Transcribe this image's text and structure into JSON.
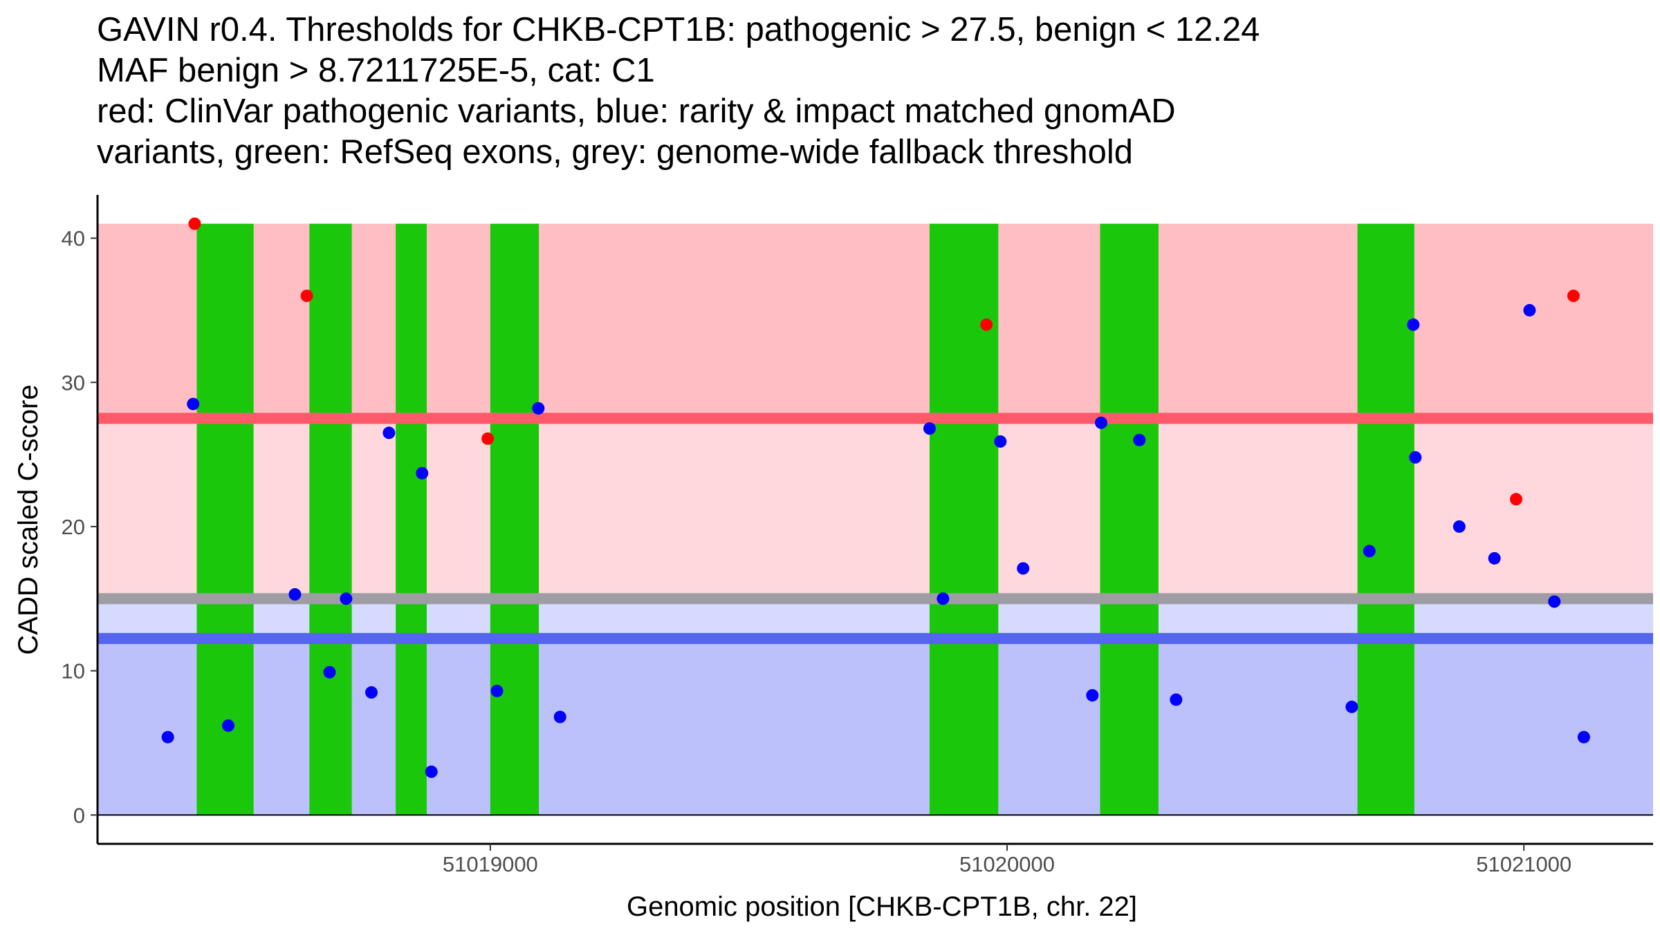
{
  "chart_data": {
    "type": "scatter",
    "title_lines": [
      "GAVIN r0.4. Thresholds for CHKB-CPT1B: pathogenic > 27.5, benign < 12.24",
      "MAF benign > 8.7211725E-5, cat: C1",
      "red: ClinVar pathogenic variants, blue: rarity & impact matched gnomAD",
      "variants, green: RefSeq exons, grey: genome-wide fallback threshold"
    ],
    "xlabel": "Genomic position [CHKB-CPT1B, chr. 22]",
    "ylabel": "CADD scaled C-score",
    "xlim": [
      51018240,
      51021250
    ],
    "ylim": [
      -2,
      43
    ],
    "x_ticks": [
      51019000,
      51020000,
      51021000
    ],
    "x_tick_labels": [
      "51019000",
      "51020000",
      "51021000"
    ],
    "y_ticks": [
      0,
      10,
      20,
      30,
      40
    ],
    "y_tick_labels": [
      "0",
      "10",
      "20",
      "30",
      "40"
    ],
    "thresholds": {
      "pathogenic": 27.5,
      "benign": 12.24,
      "genome_wide_fallback": 15
    },
    "background_bands": [
      {
        "name": "pathogenic-zone",
        "from": 27.5,
        "to": 41,
        "color": "#ffbec4"
      },
      {
        "name": "uncertain-upper-zone",
        "from": 15,
        "to": 27.5,
        "color": "#ffd8dd"
      },
      {
        "name": "uncertain-lower-zone",
        "from": 12.24,
        "to": 15,
        "color": "#d6daff"
      },
      {
        "name": "benign-zone",
        "from": 0,
        "to": 12.24,
        "color": "#bcc1fb"
      }
    ],
    "threshold_lines": [
      {
        "name": "pathogenic-threshold-line",
        "y": 27.5,
        "color": "#ff5a6a"
      },
      {
        "name": "fallback-threshold-line",
        "y": 15,
        "color": "#9e9da4"
      },
      {
        "name": "benign-threshold-line",
        "y": 12.24,
        "color": "#5566ee"
      }
    ],
    "exons": [
      {
        "start": 51018432,
        "end": 51018542
      },
      {
        "start": 51018650,
        "end": 51018732
      },
      {
        "start": 51018817,
        "end": 51018877
      },
      {
        "start": 51019000,
        "end": 51019094
      },
      {
        "start": 51019850,
        "end": 51019983
      },
      {
        "start": 51020180,
        "end": 51020293
      },
      {
        "start": 51020678,
        "end": 51020788
      }
    ],
    "series": [
      {
        "name": "ClinVar pathogenic variants",
        "color": "#ff0000",
        "points": [
          {
            "x": 51018428,
            "y": 41
          },
          {
            "x": 51018645,
            "y": 36
          },
          {
            "x": 51018995,
            "y": 26.1
          },
          {
            "x": 51019960,
            "y": 34
          },
          {
            "x": 51020985,
            "y": 21.9
          },
          {
            "x": 51021096,
            "y": 36
          }
        ]
      },
      {
        "name": "rarity & impact matched gnomAD variants",
        "color": "#0000ff",
        "points": [
          {
            "x": 51018376,
            "y": 5.4
          },
          {
            "x": 51018425,
            "y": 28.5
          },
          {
            "x": 51018493,
            "y": 6.2
          },
          {
            "x": 51018622,
            "y": 15.3
          },
          {
            "x": 51018689,
            "y": 9.9
          },
          {
            "x": 51018721,
            "y": 15
          },
          {
            "x": 51018770,
            "y": 8.5
          },
          {
            "x": 51018804,
            "y": 26.5
          },
          {
            "x": 51018868,
            "y": 23.7
          },
          {
            "x": 51018886,
            "y": 3
          },
          {
            "x": 51019013,
            "y": 8.6
          },
          {
            "x": 51019093,
            "y": 28.2
          },
          {
            "x": 51019135,
            "y": 6.8
          },
          {
            "x": 51019850,
            "y": 26.8
          },
          {
            "x": 51019876,
            "y": 15
          },
          {
            "x": 51019987,
            "y": 25.9
          },
          {
            "x": 51020031,
            "y": 17.1
          },
          {
            "x": 51020165,
            "y": 8.3
          },
          {
            "x": 51020182,
            "y": 27.2
          },
          {
            "x": 51020256,
            "y": 26
          },
          {
            "x": 51020327,
            "y": 8
          },
          {
            "x": 51020667,
            "y": 7.5
          },
          {
            "x": 51020701,
            "y": 18.3
          },
          {
            "x": 51020786,
            "y": 34
          },
          {
            "x": 51020790,
            "y": 24.8
          },
          {
            "x": 51020875,
            "y": 20
          },
          {
            "x": 51020943,
            "y": 17.8
          },
          {
            "x": 51021011,
            "y": 35
          },
          {
            "x": 51021059,
            "y": 14.8
          },
          {
            "x": 51021116,
            "y": 5.4
          }
        ]
      }
    ]
  }
}
